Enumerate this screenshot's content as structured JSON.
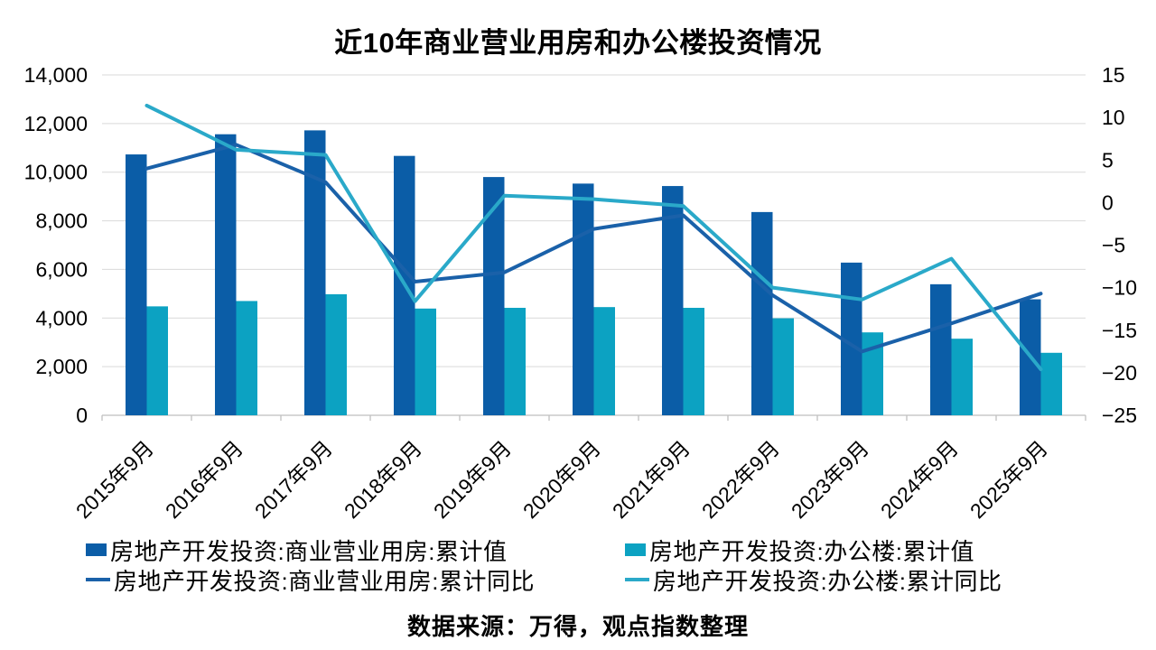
{
  "title": "近10年商业营业用房和办公楼投资情况",
  "source_note": "数据来源：万得，观点指数整理",
  "colors": {
    "bar_commercial": "#0B5DA7",
    "bar_office": "#0CA2C2",
    "line_commercial": "#1A61A9",
    "line_office": "#2AA9C9",
    "gridline": "#D9D9D9",
    "axis_line": "#BFBFBF",
    "text": "#000000",
    "background": "#FFFFFF"
  },
  "chart_data": {
    "type": "combo_bar_line",
    "title": "近10年商业营业用房和办公楼投资情况",
    "categories": [
      "2015年9月",
      "2016年9月",
      "2017年9月",
      "2018年9月",
      "2019年9月",
      "2020年9月",
      "2021年9月",
      "2022年9月",
      "2023年9月",
      "2024年9月",
      "2025年9月"
    ],
    "series": [
      {
        "name": "房地产开发投资:商业营业用房:累计值",
        "type": "bar",
        "axis": "left",
        "color_key": "bar_commercial",
        "values": [
          10730,
          11560,
          11720,
          10670,
          9800,
          9530,
          9430,
          8360,
          6280,
          5390,
          4770
        ]
      },
      {
        "name": "房地产开发投资:办公楼:累计值",
        "type": "bar",
        "axis": "left",
        "color_key": "bar_office",
        "values": [
          4480,
          4700,
          4980,
          4390,
          4420,
          4450,
          4420,
          3990,
          3410,
          3150,
          2570
        ]
      },
      {
        "name": "房地产开发投资:商业营业用房:累计同比",
        "type": "line",
        "axis": "right",
        "color_key": "line_commercial",
        "values": [
          4.0,
          6.8,
          2.4,
          -9.3,
          -8.2,
          -3.1,
          -1.5,
          -10.9,
          -17.5,
          -14.2,
          -10.7
        ]
      },
      {
        "name": "房地产开发投资:办公楼:累计同比",
        "type": "line",
        "axis": "right",
        "color_key": "line_office",
        "values": [
          11.4,
          6.2,
          5.6,
          -11.6,
          0.8,
          0.4,
          -0.4,
          -10.0,
          -11.4,
          -6.6,
          -19.6
        ]
      }
    ],
    "left_axis": {
      "min": 0,
      "max": 14000,
      "step": 2000,
      "tick_labels_top_to_bottom": [
        "14,000",
        "12,000",
        "10,000",
        "8,000",
        "6,000",
        "4,000",
        "2,000",
        "0"
      ]
    },
    "right_axis": {
      "min": -25,
      "max": 15,
      "step": 5,
      "tick_labels_top_to_bottom": [
        "15",
        "10",
        "5",
        "0",
        "−5",
        "−10",
        "−15",
        "−20",
        "−25"
      ]
    },
    "grid": "horizontal",
    "legend_position": "bottom",
    "x_tick_label_rotation_deg": 45
  }
}
